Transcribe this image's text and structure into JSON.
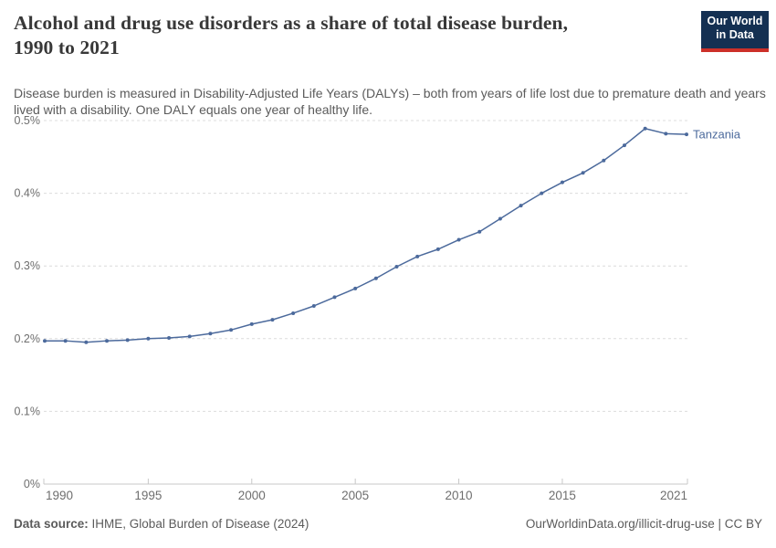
{
  "header": {
    "title_line1": "Alcohol and drug use disorders as a share of total disease burden,",
    "title_line2": "1990 to 2021",
    "subtitle": "Disease burden is measured in Disability-Adjusted Life Years (DALYs) – both from years of life lost due to premature death and years lived with a disability. One DALY equals one year of healthy life.",
    "logo": {
      "line1": "Our World",
      "line2": "in Data"
    }
  },
  "chart_data": {
    "type": "line",
    "title": "Alcohol and drug use disorders as a share of total disease burden, 1990 to 2021",
    "xlabel": "",
    "ylabel": "",
    "unit": "%",
    "xlim": [
      1990,
      2021
    ],
    "ylim": [
      0,
      0.5
    ],
    "grid": "horizontal-dashed",
    "x_ticks": [
      1990,
      1995,
      2000,
      2005,
      2010,
      2015,
      2021
    ],
    "y_ticks": [
      {
        "value": 0,
        "label": "0%"
      },
      {
        "value": 0.1,
        "label": "0.1%"
      },
      {
        "value": 0.2,
        "label": "0.2%"
      },
      {
        "value": 0.3,
        "label": "0.3%"
      },
      {
        "value": 0.4,
        "label": "0.4%"
      },
      {
        "value": 0.5,
        "label": "0.5%"
      }
    ],
    "series": [
      {
        "name": "Tanzania",
        "color": "#4C6A9C",
        "x": [
          1990,
          1991,
          1992,
          1993,
          1994,
          1995,
          1996,
          1997,
          1998,
          1999,
          2000,
          2001,
          2002,
          2003,
          2004,
          2005,
          2006,
          2007,
          2008,
          2009,
          2010,
          2011,
          2012,
          2013,
          2014,
          2015,
          2016,
          2017,
          2018,
          2019,
          2020,
          2021
        ],
        "values": [
          0.197,
          0.197,
          0.195,
          0.197,
          0.198,
          0.2,
          0.201,
          0.203,
          0.207,
          0.212,
          0.22,
          0.226,
          0.235,
          0.245,
          0.257,
          0.269,
          0.283,
          0.299,
          0.313,
          0.323,
          0.336,
          0.347,
          0.365,
          0.383,
          0.4,
          0.415,
          0.428,
          0.445,
          0.466,
          0.489,
          0.482,
          0.481
        ]
      }
    ],
    "legend_position": "end-of-line-label"
  },
  "footer": {
    "source_label": "Data source:",
    "source_text": "IHME, Global Burden of Disease (2024)",
    "right_text": "OurWorldinData.org/illicit-drug-use | CC BY"
  },
  "colors": {
    "line": "#4C6A9C",
    "entity_label": "#4C6A9C",
    "title": "#383838",
    "subtitle": "#5b5b5b",
    "axis_label": "#6e6e6e",
    "gridline": "#dcdcdc",
    "axis_line": "#c8c8c8",
    "logo_bg": "#143052",
    "logo_stripe": "#cc3029"
  }
}
